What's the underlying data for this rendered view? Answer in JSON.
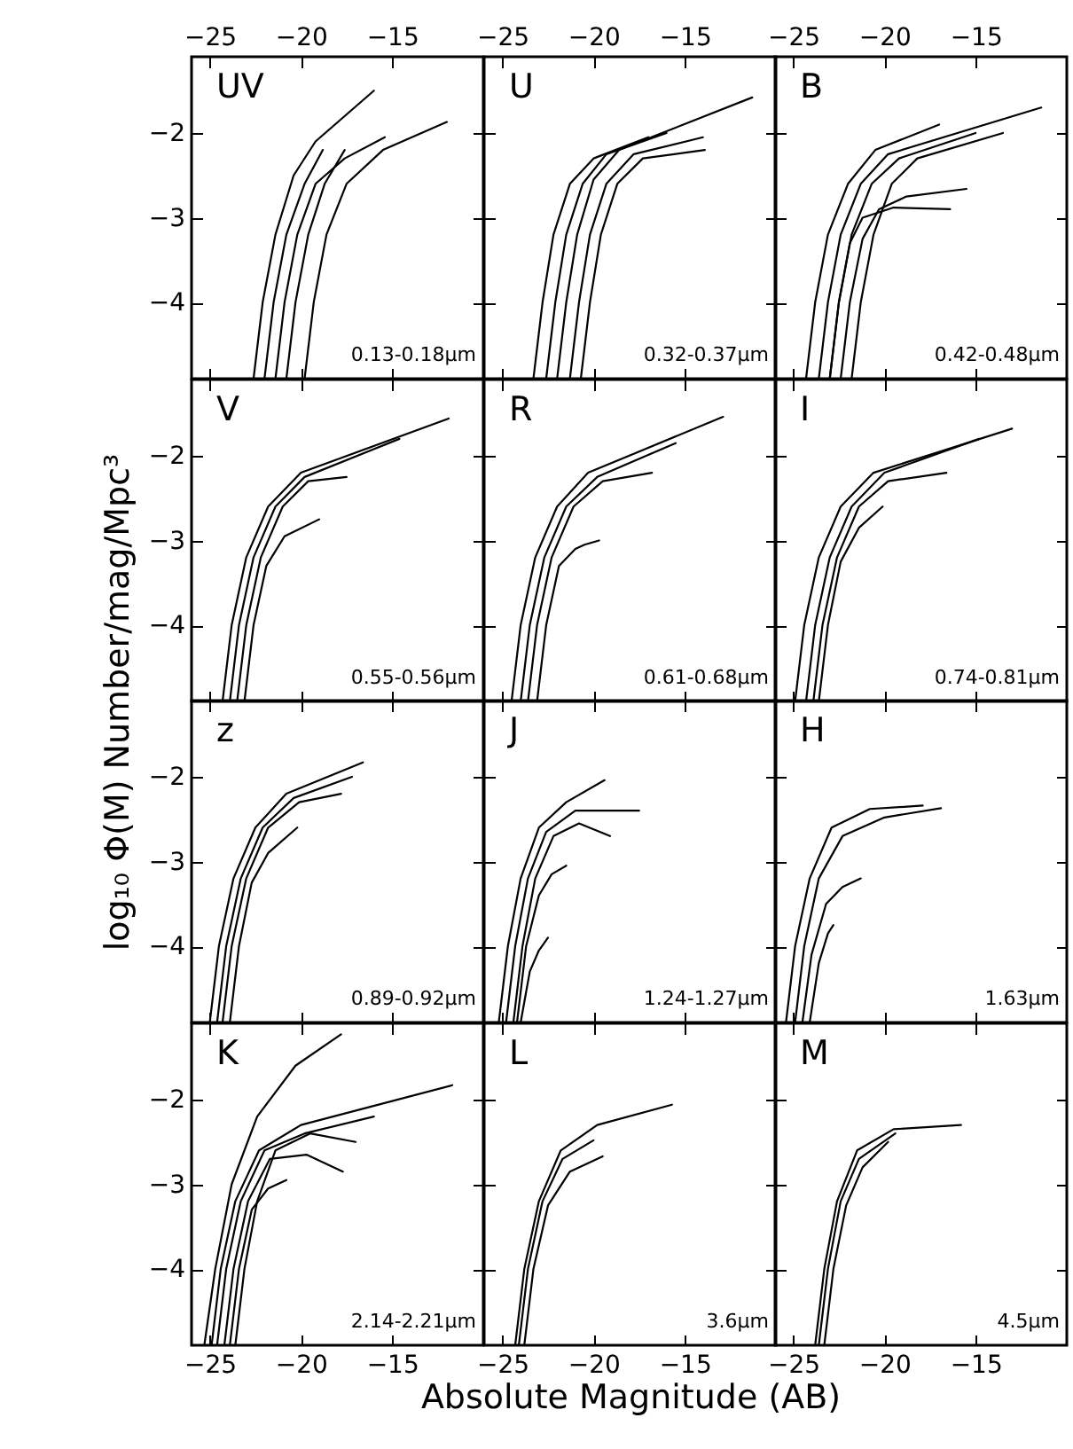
{
  "chart_data": [
    {
      "type": "line",
      "xlim": [
        -26,
        -10
      ],
      "xticks": [
        -25,
        -20,
        -15
      ],
      "x2lim": [
        -26,
        -10
      ],
      "x2ticks": [
        -25,
        -20,
        -15
      ],
      "ylim": [
        -4.9,
        -1.1
      ],
      "yticks": [
        -2,
        -3,
        -4
      ],
      "tick_labels": "y",
      "annotations": [
        "UV",
        "0.13-0.18μm"
      ],
      "series": [
        {
          "color": "#000000",
          "x": [
            -22.6,
            -22.1,
            -21.4,
            -20.4,
            -19.2,
            -16.0
          ],
          "values": [
            -4.9,
            -4.0,
            -3.2,
            -2.5,
            -2.1,
            -1.5
          ]
        },
        {
          "color": "#000000",
          "x": [
            -22.0,
            -21.5,
            -20.8,
            -19.8,
            -18.8
          ],
          "values": [
            -4.9,
            -4.0,
            -3.2,
            -2.6,
            -2.2
          ]
        },
        {
          "color": "#000000",
          "x": [
            -21.4,
            -20.9,
            -20.2,
            -19.2,
            -17.6,
            -15.4
          ],
          "values": [
            -4.9,
            -4.0,
            -3.2,
            -2.6,
            -2.3,
            -2.05
          ]
        },
        {
          "color": "#000000",
          "x": [
            -20.8,
            -20.3,
            -19.6,
            -18.7,
            -17.6
          ],
          "values": [
            -4.9,
            -4.0,
            -3.2,
            -2.6,
            -2.2
          ]
        },
        {
          "color": "#000000",
          "x": [
            -19.8,
            -19.3,
            -18.6,
            -17.5,
            -15.5,
            -12.0
          ],
          "values": [
            -4.9,
            -4.0,
            -3.2,
            -2.6,
            -2.2,
            -1.87
          ]
        }
      ]
    },
    {
      "type": "line",
      "xlim": [
        -26,
        -10
      ],
      "xticks": [
        -25,
        -20,
        -15
      ],
      "x2lim": [
        -26,
        -10
      ],
      "x2ticks": [
        -25,
        -20,
        -15
      ],
      "ylim": [
        -4.9,
        -1.1
      ],
      "yticks": [
        -2,
        -3,
        -4
      ],
      "tick_labels": false,
      "annotations": [
        "U",
        "0.32-0.37μm"
      ],
      "series": [
        {
          "color": "#000000",
          "x": [
            -23.3,
            -22.8,
            -22.2,
            -21.3,
            -20.0,
            -17.0
          ],
          "values": [
            -4.9,
            -4.0,
            -3.2,
            -2.6,
            -2.3,
            -2.05
          ]
        },
        {
          "color": "#000000",
          "x": [
            -22.6,
            -22.1,
            -21.5,
            -20.6,
            -19.3,
            -16.0
          ],
          "values": [
            -4.9,
            -4.0,
            -3.2,
            -2.6,
            -2.25,
            -2.0
          ]
        },
        {
          "color": "#000000",
          "x": [
            -22.0,
            -21.5,
            -20.9,
            -20.0,
            -18.6,
            -11.3
          ],
          "values": [
            -4.9,
            -4.0,
            -3.2,
            -2.55,
            -2.2,
            -1.58
          ]
        },
        {
          "color": "#000000",
          "x": [
            -21.3,
            -20.8,
            -20.2,
            -19.3,
            -17.8,
            -14.0
          ],
          "values": [
            -4.9,
            -4.0,
            -3.2,
            -2.6,
            -2.25,
            -2.05
          ]
        },
        {
          "color": "#000000",
          "x": [
            -20.7,
            -20.2,
            -19.6,
            -18.7,
            -17.3,
            -13.9
          ],
          "values": [
            -4.9,
            -4.0,
            -3.2,
            -2.6,
            -2.3,
            -2.2
          ]
        }
      ]
    },
    {
      "type": "line",
      "xlim": [
        -26,
        -10
      ],
      "xticks": [
        -25,
        -20,
        -15
      ],
      "x2lim": [
        -26,
        -10
      ],
      "x2ticks": [
        -25,
        -20,
        -15
      ],
      "ylim": [
        -4.9,
        -1.1
      ],
      "yticks": [
        -2,
        -3,
        -4
      ],
      "tick_labels": false,
      "annotations": [
        "B",
        "0.42-0.48μm"
      ],
      "series": [
        {
          "color": "#000000",
          "x": [
            -24.3,
            -23.8,
            -23.1,
            -22.0,
            -20.5,
            -17.0
          ],
          "values": [
            -4.9,
            -4.0,
            -3.2,
            -2.6,
            -2.2,
            -1.9
          ]
        },
        {
          "color": "#000000",
          "x": [
            -23.6,
            -23.1,
            -22.4,
            -21.3,
            -19.8,
            -11.4
          ],
          "values": [
            -4.9,
            -4.0,
            -3.2,
            -2.6,
            -2.25,
            -1.7
          ]
        },
        {
          "color": "#000000",
          "x": [
            -23.0,
            -22.5,
            -21.8,
            -20.7,
            -19.2,
            -15.0
          ],
          "values": [
            -4.9,
            -4.0,
            -3.2,
            -2.6,
            -2.3,
            -2.0
          ]
        },
        {
          "color": "#000000",
          "x": [
            -22.4,
            -21.9,
            -21.2,
            -20.3,
            -18.8,
            -15.5
          ],
          "values": [
            -4.9,
            -4.0,
            -3.25,
            -2.9,
            -2.75,
            -2.66
          ]
        },
        {
          "color": "#000000",
          "x": [
            -21.8,
            -21.3,
            -20.6,
            -19.6,
            -18.2,
            -13.5
          ],
          "values": [
            -4.9,
            -4.0,
            -3.2,
            -2.6,
            -2.3,
            -2.0
          ]
        },
        {
          "color": "#000000",
          "x": [
            -23.0,
            -22.5,
            -21.9,
            -21.2,
            -19.5,
            -16.4
          ],
          "values": [
            -4.9,
            -4.0,
            -3.3,
            -3.0,
            -2.88,
            -2.9
          ]
        }
      ]
    },
    {
      "type": "line",
      "xlim": [
        -26,
        -10
      ],
      "xticks": [
        -25,
        -20,
        -15
      ],
      "ylim": [
        -4.9,
        -1.1
      ],
      "yticks": [
        -2,
        -3,
        -4
      ],
      "tick_labels": "y",
      "ylabel": "log₁₀ Φ(M)     Number/mag/Mpc³",
      "annotations": [
        "V",
        "0.55-0.56μm"
      ],
      "series": [
        {
          "color": "#000000",
          "x": [
            -24.3,
            -23.8,
            -23.0,
            -21.8,
            -20.0,
            -11.9
          ],
          "values": [
            -4.9,
            -4.0,
            -3.2,
            -2.6,
            -2.2,
            -1.56
          ]
        },
        {
          "color": "#000000",
          "x": [
            -23.9,
            -23.4,
            -22.6,
            -21.4,
            -19.8,
            -14.6
          ],
          "values": [
            -4.9,
            -4.0,
            -3.2,
            -2.6,
            -2.25,
            -1.8
          ]
        },
        {
          "color": "#000000",
          "x": [
            -23.5,
            -23.0,
            -22.2,
            -21.0,
            -19.6,
            -17.5
          ],
          "values": [
            -4.9,
            -4.0,
            -3.2,
            -2.6,
            -2.3,
            -2.25
          ]
        },
        {
          "color": "#000000",
          "x": [
            -23.1,
            -22.6,
            -21.9,
            -20.9,
            -19.0
          ],
          "values": [
            -4.9,
            -4.0,
            -3.3,
            -2.95,
            -2.75
          ]
        }
      ]
    },
    {
      "type": "line",
      "xlim": [
        -26,
        -10
      ],
      "xticks": [
        -25,
        -20,
        -15
      ],
      "ylim": [
        -4.9,
        -1.1
      ],
      "yticks": [
        -2,
        -3,
        -4
      ],
      "tick_labels": false,
      "annotations": [
        "R",
        "0.61-0.68μm"
      ],
      "series": [
        {
          "color": "#000000",
          "x": [
            -24.5,
            -24.0,
            -23.2,
            -22.0,
            -20.3,
            -12.9
          ],
          "values": [
            -4.9,
            -4.0,
            -3.2,
            -2.6,
            -2.2,
            -1.54
          ]
        },
        {
          "color": "#000000",
          "x": [
            -24.0,
            -23.5,
            -22.7,
            -21.5,
            -19.8,
            -15.5
          ],
          "values": [
            -4.9,
            -4.0,
            -3.2,
            -2.6,
            -2.25,
            -1.85
          ]
        },
        {
          "color": "#000000",
          "x": [
            -23.6,
            -23.1,
            -22.3,
            -21.1,
            -19.5,
            -16.8
          ],
          "values": [
            -4.9,
            -4.0,
            -3.2,
            -2.6,
            -2.3,
            -2.2
          ]
        },
        {
          "color": "#000000",
          "x": [
            -23.1,
            -22.6,
            -21.9,
            -21.0,
            -20.5,
            -19.7
          ],
          "values": [
            -4.9,
            -4.0,
            -3.3,
            -3.1,
            -3.05,
            -3.0
          ]
        }
      ]
    },
    {
      "type": "line",
      "xlim": [
        -26,
        -10
      ],
      "xticks": [
        -25,
        -20,
        -15
      ],
      "ylim": [
        -4.9,
        -1.1
      ],
      "yticks": [
        -2,
        -3,
        -4
      ],
      "tick_labels": false,
      "annotations": [
        "I",
        "0.74-0.81μm"
      ],
      "series": [
        {
          "color": "#000000",
          "x": [
            -24.9,
            -24.4,
            -23.6,
            -22.4,
            -20.6,
            -13.0
          ],
          "values": [
            -4.9,
            -4.0,
            -3.2,
            -2.6,
            -2.2,
            -1.68
          ]
        },
        {
          "color": "#000000",
          "x": [
            -24.3,
            -23.8,
            -23.0,
            -21.8,
            -20.0,
            -14.8
          ],
          "values": [
            -4.9,
            -4.0,
            -3.2,
            -2.6,
            -2.2,
            -1.8
          ]
        },
        {
          "color": "#000000",
          "x": [
            -23.9,
            -23.4,
            -22.6,
            -21.4,
            -19.8,
            -16.6
          ],
          "values": [
            -4.9,
            -4.0,
            -3.2,
            -2.6,
            -2.3,
            -2.2
          ]
        },
        {
          "color": "#000000",
          "x": [
            -23.6,
            -23.1,
            -22.4,
            -21.4,
            -20.1
          ],
          "values": [
            -4.9,
            -4.0,
            -3.25,
            -2.85,
            -2.6
          ]
        }
      ]
    },
    {
      "type": "line",
      "xlim": [
        -26,
        -10
      ],
      "xticks": [
        -25,
        -20,
        -15
      ],
      "ylim": [
        -4.9,
        -1.1
      ],
      "yticks": [
        -2,
        -3,
        -4
      ],
      "tick_labels": "y",
      "annotations": [
        "z",
        "0.89-0.92μm"
      ],
      "series": [
        {
          "color": "#000000",
          "x": [
            -25.0,
            -24.5,
            -23.7,
            -22.5,
            -20.8,
            -16.6
          ],
          "values": [
            -4.9,
            -4.0,
            -3.2,
            -2.6,
            -2.2,
            -1.83
          ]
        },
        {
          "color": "#000000",
          "x": [
            -24.6,
            -24.1,
            -23.3,
            -22.1,
            -20.4,
            -17.2
          ],
          "values": [
            -4.9,
            -4.0,
            -3.2,
            -2.6,
            -2.25,
            -2.0
          ]
        },
        {
          "color": "#000000",
          "x": [
            -24.3,
            -23.8,
            -23.0,
            -21.8,
            -20.1,
            -17.8
          ],
          "values": [
            -4.9,
            -4.0,
            -3.2,
            -2.6,
            -2.3,
            -2.2
          ]
        },
        {
          "color": "#000000",
          "x": [
            -23.9,
            -23.4,
            -22.7,
            -21.8,
            -20.2
          ],
          "values": [
            -4.9,
            -4.0,
            -3.25,
            -2.9,
            -2.6
          ]
        }
      ]
    },
    {
      "type": "line",
      "xlim": [
        -26,
        -10
      ],
      "xticks": [
        -25,
        -20,
        -15
      ],
      "ylim": [
        -4.9,
        -1.1
      ],
      "yticks": [
        -2,
        -3,
        -4
      ],
      "tick_labels": false,
      "annotations": [
        "J",
        "1.24-1.27μm"
      ],
      "series": [
        {
          "color": "#000000",
          "x": [
            -25.2,
            -24.7,
            -24.0,
            -23.0,
            -21.5,
            -19.4
          ],
          "values": [
            -4.9,
            -4.0,
            -3.2,
            -2.6,
            -2.3,
            -2.04
          ]
        },
        {
          "color": "#000000",
          "x": [
            -24.8,
            -24.3,
            -23.6,
            -22.6,
            -21.0,
            -17.5
          ],
          "values": [
            -4.9,
            -4.0,
            -3.2,
            -2.65,
            -2.4,
            -2.4
          ]
        },
        {
          "color": "#000000",
          "x": [
            -24.4,
            -23.9,
            -23.2,
            -22.2,
            -20.8,
            -19.1
          ],
          "values": [
            -4.9,
            -4.0,
            -3.2,
            -2.7,
            -2.55,
            -2.7
          ]
        },
        {
          "color": "#000000",
          "x": [
            -24.0,
            -23.5,
            -23.0,
            -22.5
          ],
          "values": [
            -4.9,
            -4.3,
            -4.05,
            -3.9
          ]
        },
        {
          "color": "#000000",
          "x": [
            -24.2,
            -23.7,
            -23.0,
            -22.3,
            -21.5
          ],
          "values": [
            -4.9,
            -4.0,
            -3.4,
            -3.15,
            -3.05
          ]
        }
      ]
    },
    {
      "type": "line",
      "xlim": [
        -26,
        -10
      ],
      "xticks": [
        -25,
        -20,
        -15
      ],
      "ylim": [
        -4.9,
        -1.1
      ],
      "yticks": [
        -2,
        -3,
        -4
      ],
      "tick_labels": false,
      "annotations": [
        "H",
        "1.63μm"
      ],
      "series": [
        {
          "color": "#000000",
          "x": [
            -25.4,
            -24.9,
            -24.1,
            -22.9,
            -20.8,
            -17.9
          ],
          "values": [
            -4.9,
            -4.0,
            -3.2,
            -2.6,
            -2.38,
            -2.34
          ]
        },
        {
          "color": "#000000",
          "x": [
            -24.9,
            -24.4,
            -23.6,
            -22.3,
            -20.0,
            -16.9
          ],
          "values": [
            -4.9,
            -4.0,
            -3.2,
            -2.7,
            -2.48,
            -2.37
          ]
        },
        {
          "color": "#000000",
          "x": [
            -24.5,
            -24.0,
            -23.2,
            -22.3,
            -21.3
          ],
          "values": [
            -4.9,
            -4.1,
            -3.5,
            -3.3,
            -3.2
          ]
        },
        {
          "color": "#000000",
          "x": [
            -24.1,
            -23.6,
            -23.1,
            -22.8
          ],
          "values": [
            -4.9,
            -4.2,
            -3.85,
            -3.75
          ]
        }
      ]
    },
    {
      "type": "line",
      "xlim": [
        -26,
        -10
      ],
      "xticks": [
        -25,
        -20,
        -15
      ],
      "ylim": [
        -4.9,
        -1.1
      ],
      "yticks": [
        -2,
        -3,
        -4
      ],
      "annotations": [
        "K",
        "2.14-2.21μm"
      ],
      "series": [
        {
          "color": "#000000",
          "x": [
            -25.3,
            -24.7,
            -23.8,
            -22.4,
            -20.3,
            -17.8
          ],
          "values": [
            -4.9,
            -4.0,
            -3.0,
            -2.2,
            -1.6,
            -1.23
          ]
        },
        {
          "color": "#000000",
          "x": [
            -24.9,
            -24.4,
            -23.6,
            -22.3,
            -20.0,
            -11.7
          ],
          "values": [
            -4.9,
            -4.0,
            -3.2,
            -2.6,
            -2.3,
            -1.83
          ]
        },
        {
          "color": "#000000",
          "x": [
            -24.6,
            -24.1,
            -23.3,
            -22.0,
            -19.8,
            -16.0
          ],
          "values": [
            -4.9,
            -4.0,
            -3.2,
            -2.6,
            -2.4,
            -2.2
          ]
        },
        {
          "color": "#000000",
          "x": [
            -24.2,
            -23.7,
            -22.9,
            -21.7,
            -19.7,
            -17.7
          ],
          "values": [
            -4.9,
            -4.0,
            -3.2,
            -2.7,
            -2.65,
            -2.85
          ]
        },
        {
          "color": "#000000",
          "x": [
            -23.9,
            -23.4,
            -22.7,
            -21.8,
            -20.8
          ],
          "values": [
            -4.9,
            -4.0,
            -3.3,
            -3.05,
            -2.95
          ]
        },
        {
          "color": "#000000",
          "x": [
            -23.6,
            -23.1,
            -22.4,
            -21.4,
            -19.5,
            -17.0
          ],
          "values": [
            -4.9,
            -4.0,
            -3.2,
            -2.6,
            -2.4,
            -2.5
          ]
        }
      ]
    },
    {
      "type": "line",
      "xlim": [
        -26,
        -10
      ],
      "xticks": [
        -25,
        -20,
        -15
      ],
      "ylim": [
        -4.9,
        -1.1
      ],
      "yticks": [
        -2,
        -3,
        -4
      ],
      "tick_labels": "x",
      "xlabel": "Absolute Magnitude (AB)",
      "annotations": [
        "L",
        "3.6μm"
      ],
      "series": [
        {
          "color": "#000000",
          "x": [
            -24.3,
            -23.8,
            -23.0,
            -21.8,
            -19.8,
            -15.7
          ],
          "values": [
            -4.9,
            -4.0,
            -3.2,
            -2.6,
            -2.3,
            -2.06
          ]
        },
        {
          "color": "#000000",
          "x": [
            -24.1,
            -23.6,
            -22.8,
            -21.7,
            -20.0
          ],
          "values": [
            -4.9,
            -4.0,
            -3.2,
            -2.7,
            -2.48
          ]
        },
        {
          "color": "#000000",
          "x": [
            -23.8,
            -23.3,
            -22.5,
            -21.3,
            -19.5
          ],
          "values": [
            -4.9,
            -4.0,
            -3.25,
            -2.85,
            -2.67
          ]
        }
      ]
    },
    {
      "type": "line",
      "xlim": [
        -26,
        -10
      ],
      "xticks": [
        -25,
        -20,
        -15
      ],
      "ylim": [
        -4.9,
        -1.1
      ],
      "yticks": [
        -2,
        -3,
        -4
      ],
      "tick_labels": "x",
      "annotations": [
        "M",
        "4.5μm"
      ],
      "series": [
        {
          "color": "#000000",
          "x": [
            -23.8,
            -23.3,
            -22.6,
            -21.5,
            -19.5,
            -15.8
          ],
          "values": [
            -4.9,
            -4.0,
            -3.2,
            -2.6,
            -2.35,
            -2.3
          ]
        },
        {
          "color": "#000000",
          "x": [
            -23.6,
            -23.1,
            -22.4,
            -21.4,
            -19.4
          ],
          "values": [
            -4.9,
            -4.0,
            -3.2,
            -2.7,
            -2.4
          ]
        },
        {
          "color": "#000000",
          "x": [
            -23.3,
            -22.8,
            -22.1,
            -21.2,
            -19.8
          ],
          "values": [
            -4.9,
            -4.0,
            -3.25,
            -2.8,
            -2.5
          ]
        }
      ]
    }
  ]
}
